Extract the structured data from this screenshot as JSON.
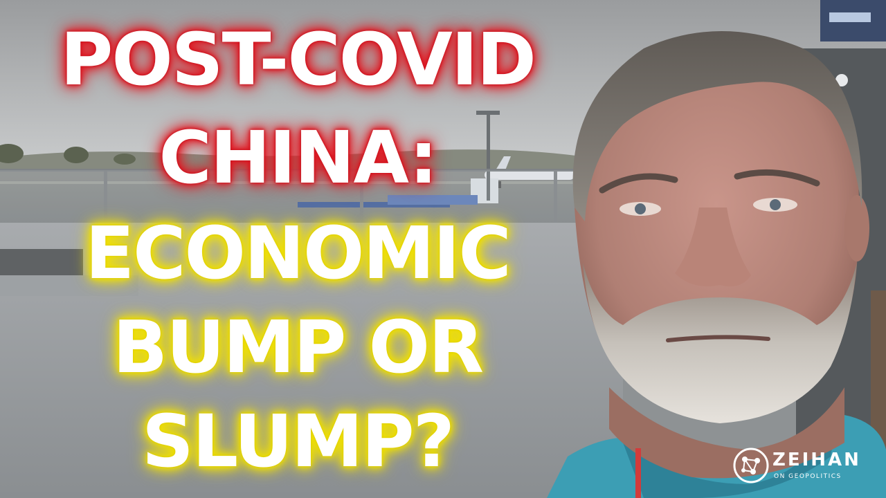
{
  "headline": {
    "line1": "POST-COVID",
    "line2": "CHINA:",
    "line3": "ECONOMIC",
    "line4": "BUMP OR",
    "line5": "SLUMP?"
  },
  "colors": {
    "glow_red": "#e31b23",
    "glow_yellow": "#f5e400",
    "text": "#ffffff",
    "shirt": "#3c9eb4"
  },
  "logo": {
    "icon": "network-globe-icon",
    "wordmark": "ZEIHAN",
    "tagline": "ON GEOPOLITICS"
  }
}
